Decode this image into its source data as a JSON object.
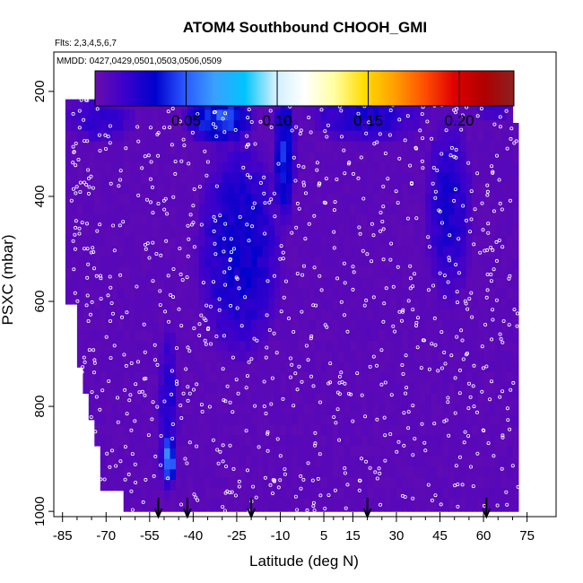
{
  "chart_data": {
    "type": "heatmap",
    "title": "ATOM4 Southbound CHOOH_GMI",
    "subtitle_flights": "Flts: 2,3,4,5,6,7",
    "subtitle_dates": "MMDD: 0427,0429,0501,0503,0506,0509",
    "xlabel": "Latitude (deg N)",
    "ylabel": "PSXC (mbar)",
    "xlim": [
      -88,
      85
    ],
    "ylim": [
      1010,
      125
    ],
    "x_ticks": [
      -85,
      -70,
      -55,
      -40,
      -25,
      -10,
      5,
      15,
      30,
      45,
      60,
      75
    ],
    "x_tick_labels": [
      "-85",
      "-70",
      "-55",
      "-40",
      "-25",
      "-10",
      "5",
      "15",
      "30",
      "45",
      "60",
      "75"
    ],
    "y_ticks": [
      200,
      400,
      600,
      800,
      1000
    ],
    "y_tick_labels": [
      "200",
      "400",
      "600",
      "800",
      "1000"
    ],
    "colorbar": {
      "range": [
        0,
        0.23
      ],
      "ticks": [
        0.05,
        0.1,
        0.15,
        0.2
      ],
      "tick_labels": [
        "0.05",
        "0.10",
        "0.15",
        "0.20"
      ],
      "colors": [
        "#6a0dad",
        "#3b00cc",
        "#0000cc",
        "#2a58ff",
        "#3aa0ff",
        "#00c4ff",
        "#cfefff",
        "#ffffff",
        "#ffffa0",
        "#ffdc00",
        "#ffa000",
        "#ff5000",
        "#e00000",
        "#b00000",
        "#8c2020"
      ]
    },
    "data_extent": {
      "lat_min": -84,
      "lat_max": 72,
      "p_top": 175,
      "p_bottom": 1000
    },
    "profile_markers_lat": [
      -52,
      -42,
      -20,
      20,
      61
    ],
    "enhancement_regions": [
      {
        "lat": [
          -42,
          -20
        ],
        "p": [
          200,
          300
        ],
        "value": 0.045
      },
      {
        "lat": [
          -38,
          -10
        ],
        "p": [
          300,
          700
        ],
        "value": 0.03
      },
      {
        "lat": [
          -52,
          -45
        ],
        "p": [
          650,
          960
        ],
        "value": 0.025
      },
      {
        "lat": [
          -51,
          -46
        ],
        "p": [
          850,
          950
        ],
        "value": 0.06
      },
      {
        "lat": [
          -12,
          -5
        ],
        "p": [
          200,
          450
        ],
        "value": 0.04
      },
      {
        "lat": [
          -84,
          -60
        ],
        "p": [
          200,
          300
        ],
        "value": 0.02
      },
      {
        "lat": [
          40,
          56
        ],
        "p": [
          250,
          600
        ],
        "value": 0.025
      },
      {
        "lat": [
          0,
          40
        ],
        "p": [
          175,
          300
        ],
        "value": 0.025
      },
      {
        "lat": [
          56,
          70
        ],
        "p": [
          175,
          260
        ],
        "value": 0.02
      }
    ]
  }
}
